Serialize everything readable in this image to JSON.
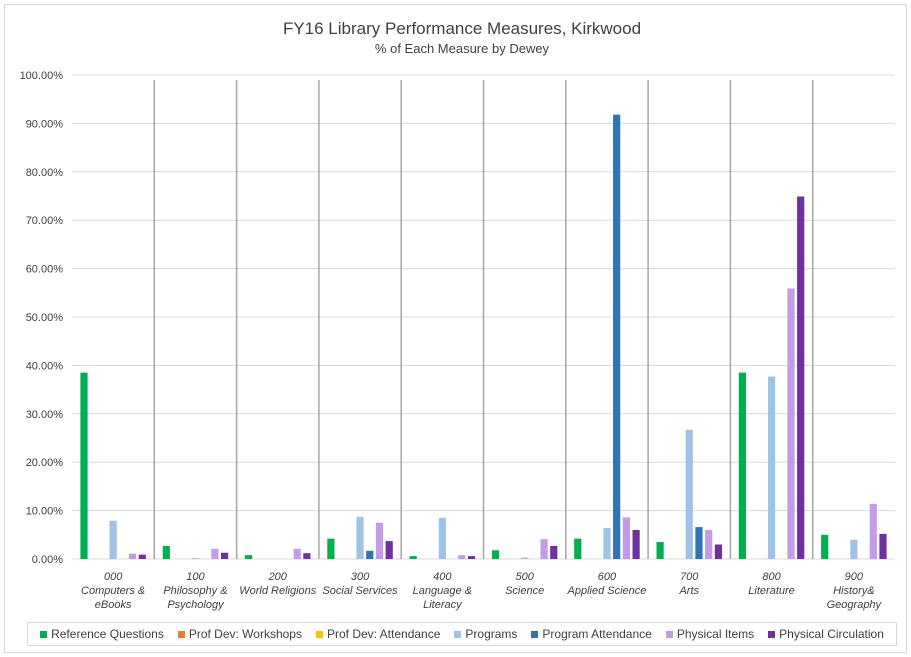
{
  "chart_data": {
    "type": "bar",
    "title": "FY16 Library Performance Measures, Kirkwood",
    "subtitle": "% of Each Measure by Dewey",
    "ylim": [
      0,
      100
    ],
    "y_ticks": [
      "0.00%",
      "10.00%",
      "20.00%",
      "30.00%",
      "40.00%",
      "50.00%",
      "60.00%",
      "70.00%",
      "80.00%",
      "90.00%",
      "100.00%"
    ],
    "categories": [
      [
        "000",
        "Computers &",
        "eBooks"
      ],
      [
        "100",
        "Philosophy &",
        "Psychology"
      ],
      [
        "200",
        "World Religions"
      ],
      [
        "300",
        "Social Services"
      ],
      [
        "400",
        "Language &",
        "Literacy"
      ],
      [
        "500",
        "Science"
      ],
      [
        "600",
        "Applied Science"
      ],
      [
        "700",
        "Arts"
      ],
      [
        "800",
        "Literature"
      ],
      [
        "900",
        "History&",
        "Geography"
      ]
    ],
    "series": [
      {
        "name": "Reference Questions",
        "color": "#00b050",
        "values": [
          38.5,
          2.7,
          0.8,
          4.2,
          0.6,
          1.8,
          4.2,
          3.5,
          38.5,
          5.0
        ]
      },
      {
        "name": "Prof Dev: Workshops",
        "color": "#ed7d31",
        "values": [
          0,
          0,
          0,
          0,
          0,
          0,
          0,
          0,
          0,
          0
        ]
      },
      {
        "name": "Prof Dev: Attendance",
        "color": "#ffc000",
        "values": [
          0,
          0,
          0,
          0,
          0,
          0,
          0,
          0,
          0,
          0
        ]
      },
      {
        "name": "Programs",
        "color": "#9dc3e6",
        "values": [
          7.9,
          0.2,
          0,
          8.7,
          8.5,
          0.3,
          6.4,
          26.7,
          37.7,
          4.0
        ]
      },
      {
        "name": "Program Attendance",
        "color": "#2e75b6",
        "values": [
          0,
          0,
          0,
          1.7,
          0,
          0,
          91.8,
          6.6,
          0,
          0
        ]
      },
      {
        "name": "Physical Items",
        "color": "#c39be6",
        "values": [
          1.1,
          2.1,
          2.1,
          7.5,
          0.8,
          4.1,
          8.6,
          6.0,
          55.9,
          11.4
        ]
      },
      {
        "name": "Physical Circulation",
        "color": "#7030a0",
        "values": [
          0.9,
          1.3,
          1.2,
          3.7,
          0.6,
          2.7,
          6.0,
          3.0,
          74.9,
          5.2
        ]
      }
    ]
  }
}
